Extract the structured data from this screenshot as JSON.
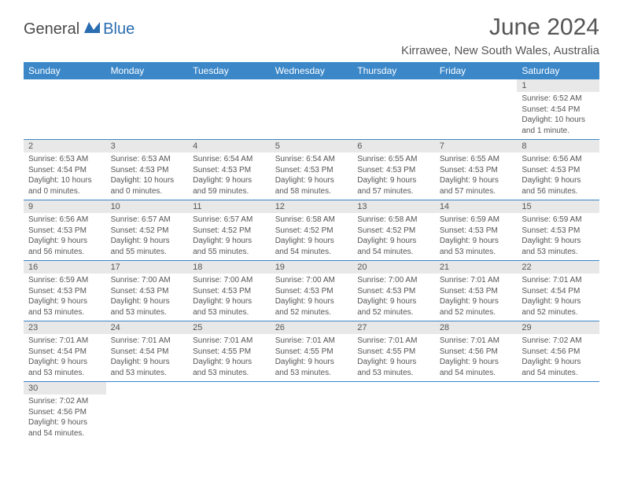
{
  "logo": {
    "dark": "General",
    "blue": "Blue"
  },
  "title": "June 2024",
  "location": "Kirrawee, New South Wales, Australia",
  "colors": {
    "header_bg": "#3b87c8",
    "header_text": "#ffffff",
    "daynum_bg": "#e8e8e8",
    "border": "#3b87c8",
    "text": "#555555",
    "logo_blue": "#2a6db0",
    "logo_dark": "#4a4a4a"
  },
  "weekdays": [
    "Sunday",
    "Monday",
    "Tuesday",
    "Wednesday",
    "Thursday",
    "Friday",
    "Saturday"
  ],
  "weeks": [
    [
      null,
      null,
      null,
      null,
      null,
      null,
      {
        "n": "1",
        "sunrise": "Sunrise: 6:52 AM",
        "sunset": "Sunset: 4:54 PM",
        "day1": "Daylight: 10 hours",
        "day2": "and 1 minute."
      }
    ],
    [
      {
        "n": "2",
        "sunrise": "Sunrise: 6:53 AM",
        "sunset": "Sunset: 4:54 PM",
        "day1": "Daylight: 10 hours",
        "day2": "and 0 minutes."
      },
      {
        "n": "3",
        "sunrise": "Sunrise: 6:53 AM",
        "sunset": "Sunset: 4:53 PM",
        "day1": "Daylight: 10 hours",
        "day2": "and 0 minutes."
      },
      {
        "n": "4",
        "sunrise": "Sunrise: 6:54 AM",
        "sunset": "Sunset: 4:53 PM",
        "day1": "Daylight: 9 hours",
        "day2": "and 59 minutes."
      },
      {
        "n": "5",
        "sunrise": "Sunrise: 6:54 AM",
        "sunset": "Sunset: 4:53 PM",
        "day1": "Daylight: 9 hours",
        "day2": "and 58 minutes."
      },
      {
        "n": "6",
        "sunrise": "Sunrise: 6:55 AM",
        "sunset": "Sunset: 4:53 PM",
        "day1": "Daylight: 9 hours",
        "day2": "and 57 minutes."
      },
      {
        "n": "7",
        "sunrise": "Sunrise: 6:55 AM",
        "sunset": "Sunset: 4:53 PM",
        "day1": "Daylight: 9 hours",
        "day2": "and 57 minutes."
      },
      {
        "n": "8",
        "sunrise": "Sunrise: 6:56 AM",
        "sunset": "Sunset: 4:53 PM",
        "day1": "Daylight: 9 hours",
        "day2": "and 56 minutes."
      }
    ],
    [
      {
        "n": "9",
        "sunrise": "Sunrise: 6:56 AM",
        "sunset": "Sunset: 4:53 PM",
        "day1": "Daylight: 9 hours",
        "day2": "and 56 minutes."
      },
      {
        "n": "10",
        "sunrise": "Sunrise: 6:57 AM",
        "sunset": "Sunset: 4:52 PM",
        "day1": "Daylight: 9 hours",
        "day2": "and 55 minutes."
      },
      {
        "n": "11",
        "sunrise": "Sunrise: 6:57 AM",
        "sunset": "Sunset: 4:52 PM",
        "day1": "Daylight: 9 hours",
        "day2": "and 55 minutes."
      },
      {
        "n": "12",
        "sunrise": "Sunrise: 6:58 AM",
        "sunset": "Sunset: 4:52 PM",
        "day1": "Daylight: 9 hours",
        "day2": "and 54 minutes."
      },
      {
        "n": "13",
        "sunrise": "Sunrise: 6:58 AM",
        "sunset": "Sunset: 4:52 PM",
        "day1": "Daylight: 9 hours",
        "day2": "and 54 minutes."
      },
      {
        "n": "14",
        "sunrise": "Sunrise: 6:59 AM",
        "sunset": "Sunset: 4:53 PM",
        "day1": "Daylight: 9 hours",
        "day2": "and 53 minutes."
      },
      {
        "n": "15",
        "sunrise": "Sunrise: 6:59 AM",
        "sunset": "Sunset: 4:53 PM",
        "day1": "Daylight: 9 hours",
        "day2": "and 53 minutes."
      }
    ],
    [
      {
        "n": "16",
        "sunrise": "Sunrise: 6:59 AM",
        "sunset": "Sunset: 4:53 PM",
        "day1": "Daylight: 9 hours",
        "day2": "and 53 minutes."
      },
      {
        "n": "17",
        "sunrise": "Sunrise: 7:00 AM",
        "sunset": "Sunset: 4:53 PM",
        "day1": "Daylight: 9 hours",
        "day2": "and 53 minutes."
      },
      {
        "n": "18",
        "sunrise": "Sunrise: 7:00 AM",
        "sunset": "Sunset: 4:53 PM",
        "day1": "Daylight: 9 hours",
        "day2": "and 53 minutes."
      },
      {
        "n": "19",
        "sunrise": "Sunrise: 7:00 AM",
        "sunset": "Sunset: 4:53 PM",
        "day1": "Daylight: 9 hours",
        "day2": "and 52 minutes."
      },
      {
        "n": "20",
        "sunrise": "Sunrise: 7:00 AM",
        "sunset": "Sunset: 4:53 PM",
        "day1": "Daylight: 9 hours",
        "day2": "and 52 minutes."
      },
      {
        "n": "21",
        "sunrise": "Sunrise: 7:01 AM",
        "sunset": "Sunset: 4:53 PM",
        "day1": "Daylight: 9 hours",
        "day2": "and 52 minutes."
      },
      {
        "n": "22",
        "sunrise": "Sunrise: 7:01 AM",
        "sunset": "Sunset: 4:54 PM",
        "day1": "Daylight: 9 hours",
        "day2": "and 52 minutes."
      }
    ],
    [
      {
        "n": "23",
        "sunrise": "Sunrise: 7:01 AM",
        "sunset": "Sunset: 4:54 PM",
        "day1": "Daylight: 9 hours",
        "day2": "and 53 minutes."
      },
      {
        "n": "24",
        "sunrise": "Sunrise: 7:01 AM",
        "sunset": "Sunset: 4:54 PM",
        "day1": "Daylight: 9 hours",
        "day2": "and 53 minutes."
      },
      {
        "n": "25",
        "sunrise": "Sunrise: 7:01 AM",
        "sunset": "Sunset: 4:55 PM",
        "day1": "Daylight: 9 hours",
        "day2": "and 53 minutes."
      },
      {
        "n": "26",
        "sunrise": "Sunrise: 7:01 AM",
        "sunset": "Sunset: 4:55 PM",
        "day1": "Daylight: 9 hours",
        "day2": "and 53 minutes."
      },
      {
        "n": "27",
        "sunrise": "Sunrise: 7:01 AM",
        "sunset": "Sunset: 4:55 PM",
        "day1": "Daylight: 9 hours",
        "day2": "and 53 minutes."
      },
      {
        "n": "28",
        "sunrise": "Sunrise: 7:01 AM",
        "sunset": "Sunset: 4:56 PM",
        "day1": "Daylight: 9 hours",
        "day2": "and 54 minutes."
      },
      {
        "n": "29",
        "sunrise": "Sunrise: 7:02 AM",
        "sunset": "Sunset: 4:56 PM",
        "day1": "Daylight: 9 hours",
        "day2": "and 54 minutes."
      }
    ],
    [
      {
        "n": "30",
        "sunrise": "Sunrise: 7:02 AM",
        "sunset": "Sunset: 4:56 PM",
        "day1": "Daylight: 9 hours",
        "day2": "and 54 minutes."
      },
      null,
      null,
      null,
      null,
      null,
      null
    ]
  ]
}
